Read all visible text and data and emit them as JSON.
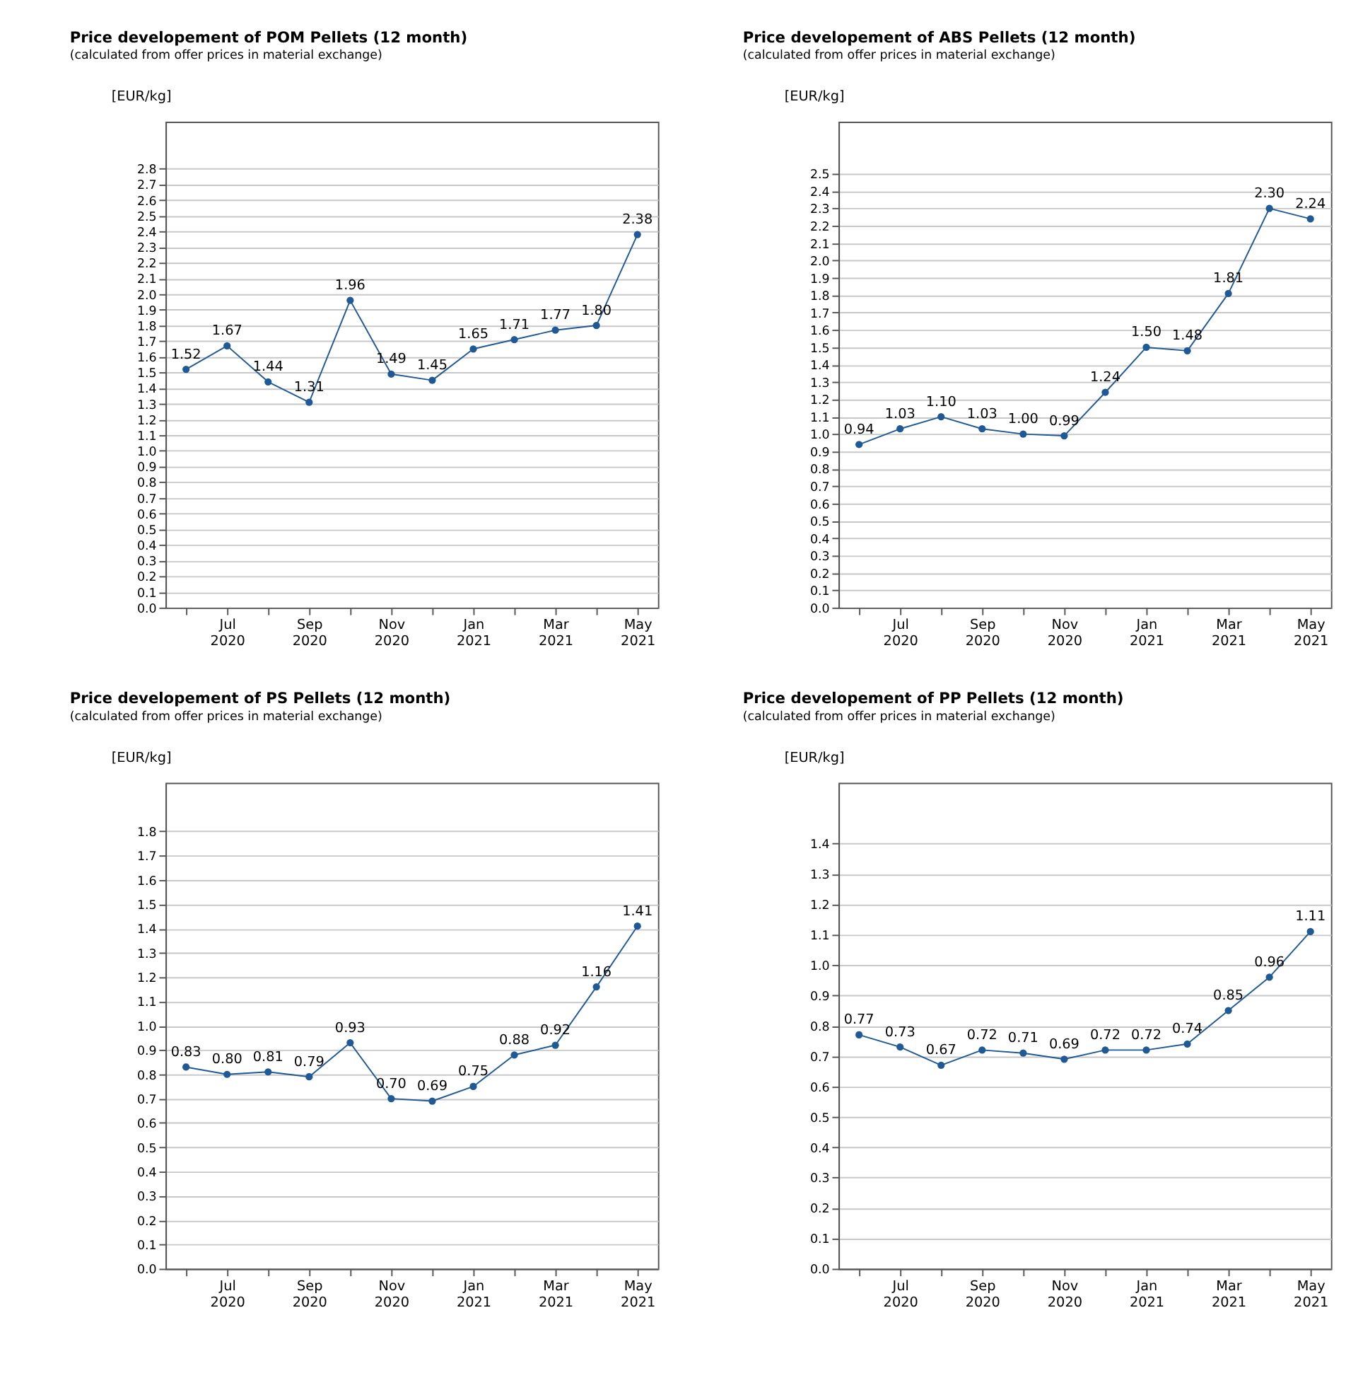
{
  "chart_data": [
    {
      "type": "line",
      "title": "Price developement of POM Pellets (12 month)",
      "subtitle": "(calculated from offer prices in material exchange)",
      "ylabel": "[EUR/kg]",
      "categories": [
        null,
        "Jul 2020",
        null,
        "Sep 2020",
        null,
        "Nov 2020",
        null,
        "Jan 2021",
        null,
        "Mar 2021",
        null,
        "May 2021"
      ],
      "values": [
        1.52,
        1.67,
        1.44,
        1.31,
        1.96,
        1.49,
        1.45,
        1.65,
        1.71,
        1.77,
        1.8,
        2.38
      ],
      "value_labels": [
        "1.52",
        "1.67",
        "1.44",
        "1.31",
        "1.96",
        "1.49",
        "1.45",
        "1.65",
        "1.71",
        "1.77",
        "1.80",
        "2.38"
      ],
      "color": "#1f5a96",
      "ylim": [
        0,
        3.1
      ],
      "yticks": [
        {
          "value": 0,
          "label": "0.0"
        },
        0.1,
        0.2,
        0.3,
        0.4,
        0.5,
        0.6,
        0.7,
        0.8,
        0.9,
        {
          "value": 1,
          "label": "1.0"
        },
        1.1,
        1.2,
        1.3,
        1.4,
        1.5,
        1.6,
        1.7,
        1.8,
        1.9,
        {
          "value": 2,
          "label": "2.0"
        },
        2.1,
        2.2,
        2.3,
        2.4,
        2.5,
        2.6,
        2.7,
        2.8
      ],
      "grid": "y",
      "marker": "circle"
    },
    {
      "type": "line",
      "title": "Price developement of ABS Pellets (12 month)",
      "subtitle": "(calculated from offer prices in material exchange)",
      "ylabel": "[EUR/kg]",
      "categories": [
        null,
        "Jul 2020",
        null,
        "Sep 2020",
        null,
        "Nov 2020",
        null,
        "Jan 2021",
        null,
        "Mar 2021",
        null,
        "May 2021"
      ],
      "values": [
        0.94,
        1.03,
        1.1,
        1.03,
        1.0,
        0.99,
        1.24,
        1.5,
        1.48,
        1.81,
        2.3,
        2.24
      ],
      "value_labels": [
        "0.94",
        "1.03",
        "1.10",
        "1.03",
        "1.00",
        "0.99",
        "1.24",
        "1.50",
        "1.48",
        "1.81",
        "2.30",
        "2.24"
      ],
      "color": "#1f5a96",
      "ylim": [
        0,
        2.8
      ],
      "yticks": [
        {
          "value": 0,
          "label": "0.0"
        },
        0.1,
        0.2,
        0.3,
        0.4,
        0.5,
        0.6,
        0.7,
        0.8,
        0.9,
        {
          "value": 1,
          "label": "1.0"
        },
        1.1,
        1.2,
        1.3,
        1.4,
        1.5,
        1.6,
        1.7,
        1.8,
        1.9,
        {
          "value": 2,
          "label": "2.0"
        },
        2.1,
        2.2,
        2.3,
        2.4,
        2.5
      ],
      "grid": "y",
      "marker": "circle"
    },
    {
      "type": "line",
      "title": "Price developement of PS Pellets (12 month)",
      "subtitle": "(calculated from offer prices in material exchange)",
      "ylabel": "[EUR/kg]",
      "categories": [
        null,
        "Jul 2020",
        null,
        "Sep 2020",
        null,
        "Nov 2020",
        null,
        "Jan 2021",
        null,
        "Mar 2021",
        null,
        "May 2021"
      ],
      "values": [
        0.83,
        0.8,
        0.81,
        0.79,
        0.93,
        0.7,
        0.69,
        0.75,
        0.88,
        0.92,
        1.16,
        1.41
      ],
      "value_labels": [
        "0.83",
        "0.80",
        "0.81",
        "0.79",
        "0.93",
        "0.70",
        "0.69",
        "0.75",
        "0.88",
        "0.92",
        "1.16",
        "1.41"
      ],
      "color": "#1f5a96",
      "ylim": [
        0,
        2.0
      ],
      "yticks": [
        {
          "value": 0,
          "label": "0.0"
        },
        0.1,
        0.2,
        0.3,
        0.4,
        0.5,
        0.6,
        0.7,
        0.8,
        0.9,
        {
          "value": 1,
          "label": "1.0"
        },
        1.1,
        1.2,
        1.3,
        1.4,
        1.5,
        1.6,
        1.7,
        1.8
      ],
      "grid": "y",
      "marker": "circle"
    },
    {
      "type": "line",
      "title": "Price developement of PP Pellets (12 month)",
      "subtitle": "(calculated from offer prices in material exchange)",
      "ylabel": "[EUR/kg]",
      "categories": [
        null,
        "Jul 2020",
        null,
        "Sep 2020",
        null,
        "Nov 2020",
        null,
        "Jan 2021",
        null,
        "Mar 2021",
        null,
        "May 2021"
      ],
      "values": [
        0.77,
        0.73,
        0.67,
        0.72,
        0.71,
        0.69,
        0.72,
        0.72,
        0.74,
        0.85,
        0.96,
        1.11
      ],
      "value_labels": [
        "0.77",
        "0.73",
        "0.67",
        "0.72",
        "0.71",
        "0.69",
        "0.72",
        "0.72",
        "0.74",
        "0.85",
        "0.96",
        "1.11"
      ],
      "color": "#1f5a96",
      "ylim": [
        0,
        1.6
      ],
      "yticks": [
        {
          "value": 0,
          "label": "0.0"
        },
        0.1,
        0.2,
        0.3,
        0.4,
        0.5,
        0.6,
        0.7,
        0.8,
        0.9,
        {
          "value": 1,
          "label": "1.0"
        },
        1.1,
        1.2,
        1.3,
        1.4
      ],
      "grid": "y",
      "marker": "circle"
    }
  ]
}
